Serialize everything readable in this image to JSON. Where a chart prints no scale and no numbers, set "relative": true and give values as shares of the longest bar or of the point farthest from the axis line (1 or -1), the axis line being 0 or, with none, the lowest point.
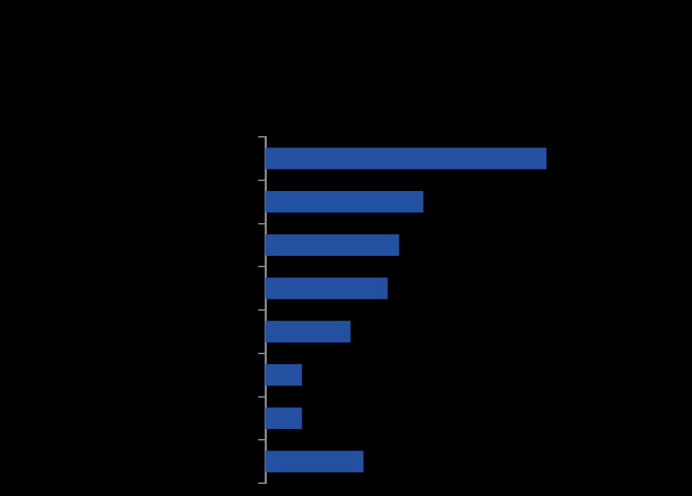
{
  "chart_data": {
    "type": "bar",
    "orientation": "horizontal",
    "relative": true,
    "categories": [
      null,
      null,
      null,
      null,
      null,
      null,
      null,
      null
    ],
    "values": [
      1,
      0.562,
      0.476,
      0.435,
      0.303,
      0.13,
      0.13,
      0.349
    ],
    "color": "#2350a1"
  }
}
